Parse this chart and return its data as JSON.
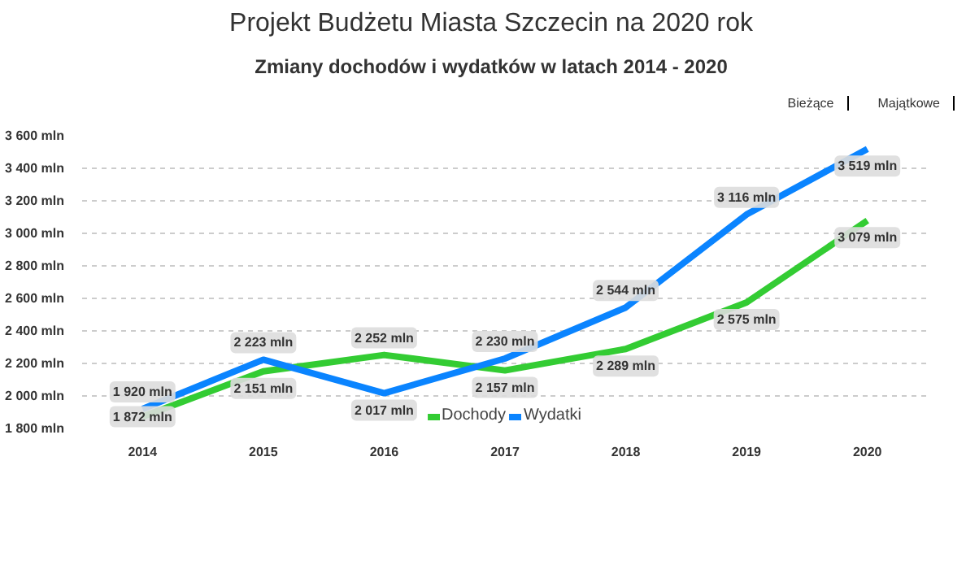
{
  "chart_data": {
    "type": "line",
    "title": "Projekt Budżetu Miasta Szczecin na 2020 rok",
    "subtitle": "Zmiany dochodów i wydatków w latach 2014 - 2020",
    "annotations": [
      "Bieżące",
      "Majątkowe"
    ],
    "categories": [
      "2014",
      "2015",
      "2016",
      "2017",
      "2018",
      "2019",
      "2020"
    ],
    "series": [
      {
        "name": "Dochody",
        "color": "#33cc33",
        "values": [
          1872,
          2151,
          2252,
          2157,
          2289,
          2575,
          3079
        ],
        "value_labels": [
          "1 872 mln",
          "2 151 mln",
          "2 252 mln",
          "2 157 mln",
          "2 289 mln",
          "2 575 mln",
          "3 079 mln"
        ]
      },
      {
        "name": "Wydatki",
        "color": "#0a84ff",
        "values": [
          1920,
          2223,
          2017,
          2230,
          2544,
          3116,
          3519
        ],
        "value_labels": [
          "1 920 mln",
          "2 223 mln",
          "2 017 mln",
          "2 230 mln",
          "2 544 mln",
          "3 116 mln",
          "3 519 mln"
        ]
      }
    ],
    "ylim": [
      1800,
      3600
    ],
    "yticks": [
      {
        "value": 1800,
        "label": "1 800 mln"
      },
      {
        "value": 2000,
        "label": "2 000 mln"
      },
      {
        "value": 2200,
        "label": "2 200 mln"
      },
      {
        "value": 2400,
        "label": "2 400 mln"
      },
      {
        "value": 2600,
        "label": "2 600 mln"
      },
      {
        "value": 2800,
        "label": "2 800 mln"
      },
      {
        "value": 3000,
        "label": "3 000 mln"
      },
      {
        "value": 3200,
        "label": "3 200 mln"
      },
      {
        "value": 3400,
        "label": "3 400 mln"
      },
      {
        "value": 3600,
        "label": "3 600 mln"
      }
    ],
    "grid": "y",
    "legend": "bottom"
  }
}
